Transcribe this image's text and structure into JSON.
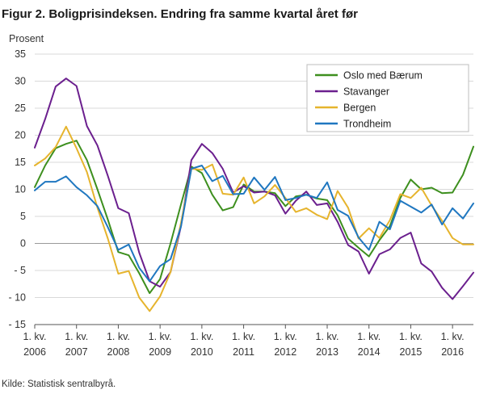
{
  "header": {
    "title": "Figur 2. Boligprisindeksen. Endring fra samme kvartal året før"
  },
  "footer": {
    "source": "Kilde: Statistisk sentralbyrå."
  },
  "chart_data": {
    "type": "line",
    "title": "Figur 2. Boligprisindeksen. Endring fra samme kvartal året før",
    "ylabel": "Prosent",
    "xlabel": "",
    "ylim": [
      -15,
      35
    ],
    "yticks": [
      35,
      30,
      25,
      20,
      15,
      10,
      5,
      0,
      -5,
      -10,
      -15
    ],
    "ytick_labels": [
      "35",
      "30",
      "25",
      "20",
      "15",
      "10",
      "5",
      "0",
      "- 5",
      "- 10",
      "- 15"
    ],
    "x_tick_labels": [
      {
        "line1": "1. kv.",
        "line2": "2006"
      },
      {
        "line1": "1. kv.",
        "line2": "2007"
      },
      {
        "line1": "1. kv.",
        "line2": "2008"
      },
      {
        "line1": "1. kv.",
        "line2": "2009"
      },
      {
        "line1": "1. kv.",
        "line2": "2010"
      },
      {
        "line1": "1. kv.",
        "line2": "2011"
      },
      {
        "line1": "1. kv.",
        "line2": "2012"
      },
      {
        "line1": "1. kv.",
        "line2": "2013"
      },
      {
        "line1": "1. kv.",
        "line2": "2014"
      },
      {
        "line1": "1. kv.",
        "line2": "2015"
      },
      {
        "line1": "1. kv.",
        "line2": "2016"
      }
    ],
    "grid": true,
    "legend_position": "top-right",
    "series": [
      {
        "name": "Oslo med Bærum",
        "color": "#3d8f1e",
        "values": [
          10.4,
          14.4,
          17.6,
          18.4,
          19.0,
          15.4,
          10.0,
          4.4,
          -1.6,
          -2.2,
          -5.5,
          -9.2,
          -6.6,
          0.0,
          7.2,
          14.2,
          13.0,
          9.0,
          6.1,
          6.7,
          10.9,
          9.6,
          9.6,
          9.3,
          6.9,
          8.7,
          9.0,
          8.3,
          8.0,
          5.2,
          0.9,
          -0.8,
          -2.4,
          0.6,
          3.2,
          8.4,
          11.8,
          10.0,
          10.3,
          9.3,
          9.4,
          12.7,
          17.9
        ]
      },
      {
        "name": "Stavanger",
        "color": "#6b1f8e",
        "values": [
          17.7,
          23.0,
          29.0,
          30.5,
          29.1,
          21.7,
          18.1,
          12.5,
          6.5,
          5.6,
          -1.7,
          -7.0,
          -8.0,
          -5.3,
          3.2,
          15.4,
          18.4,
          16.7,
          13.8,
          9.4,
          10.6,
          9.4,
          9.6,
          8.9,
          5.5,
          7.9,
          9.6,
          7.1,
          7.4,
          4.0,
          -0.3,
          -1.5,
          -5.6,
          -2.0,
          -1.1,
          1.0,
          2.0,
          -3.7,
          -5.2,
          -8.2,
          -10.3,
          -7.9,
          -5.4
        ]
      },
      {
        "name": "Bergen",
        "color": "#e6b42d",
        "values": [
          14.4,
          15.7,
          17.8,
          21.6,
          17.6,
          13.2,
          6.6,
          0.9,
          -5.6,
          -5.1,
          -10.0,
          -12.5,
          -9.8,
          -5.3,
          3.8,
          13.8,
          13.6,
          14.6,
          9.2,
          9.0,
          12.2,
          7.4,
          8.7,
          10.8,
          8.4,
          5.8,
          6.5,
          5.3,
          4.5,
          9.7,
          6.6,
          0.9,
          2.8,
          1.0,
          4.3,
          9.1,
          8.4,
          10.3,
          7.0,
          4.2,
          1.0,
          -0.2,
          -0.2
        ]
      },
      {
        "name": "Trondheim",
        "color": "#1f77c0",
        "values": [
          9.8,
          11.4,
          11.4,
          12.4,
          10.4,
          8.9,
          6.9,
          3.0,
          -1.2,
          -0.2,
          -4.5,
          -7.0,
          -4.2,
          -2.9,
          3.1,
          13.8,
          14.4,
          11.5,
          12.5,
          9.1,
          9.2,
          12.2,
          9.9,
          12.3,
          8.0,
          8.4,
          9.0,
          8.4,
          11.3,
          6.2,
          5.1,
          1.1,
          -1.2,
          4.0,
          2.6,
          7.9,
          6.8,
          5.7,
          7.2,
          3.5,
          6.5,
          4.6,
          7.4
        ]
      }
    ]
  }
}
